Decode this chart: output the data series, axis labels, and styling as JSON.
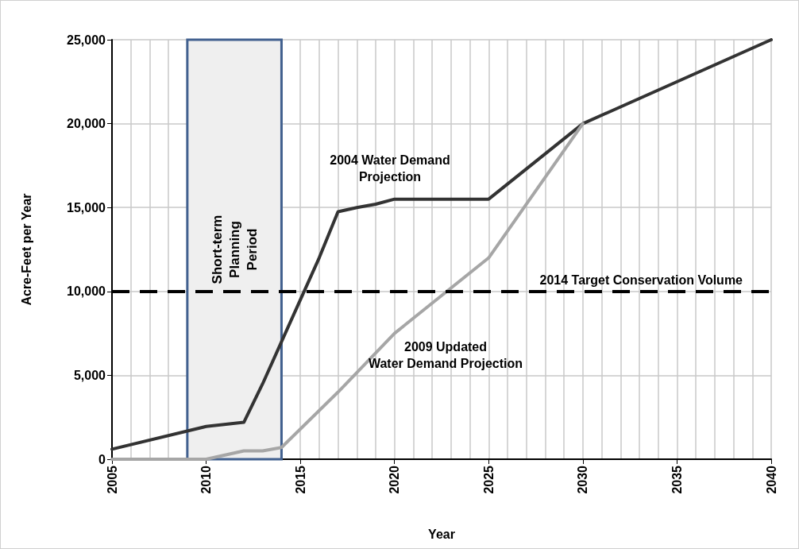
{
  "chart_data": {
    "type": "line",
    "xlabel": "Year",
    "ylabel": "Acre-Feet per Year",
    "x": [
      2005,
      2010,
      2012,
      2013,
      2014,
      2015,
      2016,
      2017,
      2018,
      2019,
      2020,
      2025,
      2030,
      2040
    ],
    "series": [
      {
        "color": "#333333",
        "values": [
          600,
          1950,
          2200,
          4500,
          7000,
          9500,
          12000,
          14750,
          15000,
          15200,
          15500,
          15500,
          20000,
          25000
        ]
      },
      {
        "color": "#a6a6a6",
        "values": [
          0,
          0,
          500,
          500,
          700,
          null,
          null,
          4000,
          null,
          null,
          7500,
          12000,
          20000,
          null
        ]
      }
    ],
    "xlim": [
      2005,
      2040
    ],
    "xticks": [
      2005,
      2010,
      2015,
      2020,
      2025,
      2030,
      2035,
      2040
    ],
    "ylim": [
      0,
      25000
    ],
    "yticks": [
      {
        "value": 0,
        "label": "0"
      },
      {
        "value": 5000,
        "label": "5,000"
      },
      {
        "value": 10000,
        "label": "10,000"
      },
      {
        "value": 15000,
        "label": "15,000"
      },
      {
        "value": 20000,
        "label": "20,000"
      },
      {
        "value": 25000,
        "label": "25,000"
      }
    ],
    "grid": true,
    "marker": "none",
    "line_style": "solid",
    "ref_lines": [
      {
        "axis": "y",
        "value": 10000,
        "label": "2014 Target Conservation Volume",
        "color": "#000000",
        "line_style": "dashed"
      }
    ],
    "bands": [
      {
        "axis": "x",
        "from": 2009,
        "to": 2014,
        "label": "Short-term Planning Period",
        "color": "#efefef"
      }
    ],
    "annotations": [
      "2004 Water Demand Projection",
      "2009 Updated Water Demand Projection"
    ]
  }
}
